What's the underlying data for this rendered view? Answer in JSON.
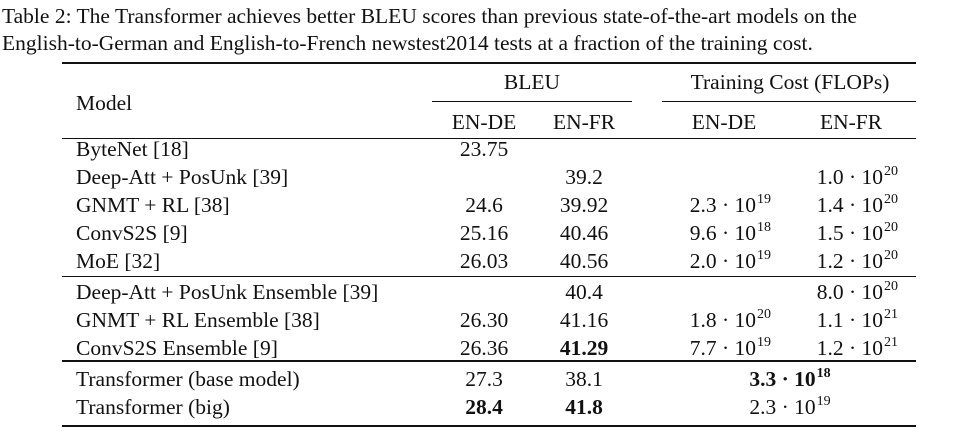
{
  "caption": {
    "line1": "Table 2: The Transformer achieves better BLEU scores than previous state-of-the-art models on the",
    "line2": "English-to-German and English-to-French newstest2014 tests at a fraction of the training cost."
  },
  "header": {
    "model": "Model",
    "bleu": "BLEU",
    "cost": "Training Cost (FLOPs)",
    "sub": [
      "EN-DE",
      "EN-FR",
      "EN-DE",
      "EN-FR"
    ]
  },
  "rows": [
    {
      "model": "ByteNet [18]",
      "bleu_de": "23.75",
      "bleu_fr": "",
      "cost_de": null,
      "cost_fr": null
    },
    {
      "model": "Deep-Att + PosUnk [39]",
      "bleu_de": "",
      "bleu_fr": "39.2",
      "cost_de": null,
      "cost_fr": {
        "m": "1.0",
        "e": "20"
      }
    },
    {
      "model": "GNMT + RL [38]",
      "bleu_de": "24.6",
      "bleu_fr": "39.92",
      "cost_de": {
        "m": "2.3",
        "e": "19"
      },
      "cost_fr": {
        "m": "1.4",
        "e": "20"
      }
    },
    {
      "model": "ConvS2S [9]",
      "bleu_de": "25.16",
      "bleu_fr": "40.46",
      "cost_de": {
        "m": "9.6",
        "e": "18"
      },
      "cost_fr": {
        "m": "1.5",
        "e": "20"
      }
    },
    {
      "model": "MoE [32]",
      "bleu_de": "26.03",
      "bleu_fr": "40.56",
      "cost_de": {
        "m": "2.0",
        "e": "19"
      },
      "cost_fr": {
        "m": "1.2",
        "e": "20"
      }
    },
    {
      "model": "Deep-Att + PosUnk Ensemble [39]",
      "bleu_de": "",
      "bleu_fr": "40.4",
      "cost_de": null,
      "cost_fr": {
        "m": "8.0",
        "e": "20"
      }
    },
    {
      "model": "GNMT + RL Ensemble [38]",
      "bleu_de": "26.30",
      "bleu_fr": "41.16",
      "cost_de": {
        "m": "1.8",
        "e": "20"
      },
      "cost_fr": {
        "m": "1.1",
        "e": "21"
      }
    },
    {
      "model": "ConvS2S Ensemble [9]",
      "bleu_de": "26.36",
      "bleu_fr": "41.29",
      "bleu_fr_bold": true,
      "cost_de": {
        "m": "7.7",
        "e": "19"
      },
      "cost_fr": {
        "m": "1.2",
        "e": "21"
      }
    },
    {
      "model": "Transformer (base model)",
      "bleu_de": "27.3",
      "bleu_fr": "38.1",
      "cost_merged": {
        "m": "3.3",
        "e": "18",
        "bold": true
      }
    },
    {
      "model": "Transformer (big)",
      "bleu_de": "28.4",
      "bleu_de_bold": true,
      "bleu_fr": "41.8",
      "bleu_fr_bold": true,
      "cost_merged": {
        "m": "2.3",
        "e": "19",
        "bold": false
      }
    }
  ]
}
